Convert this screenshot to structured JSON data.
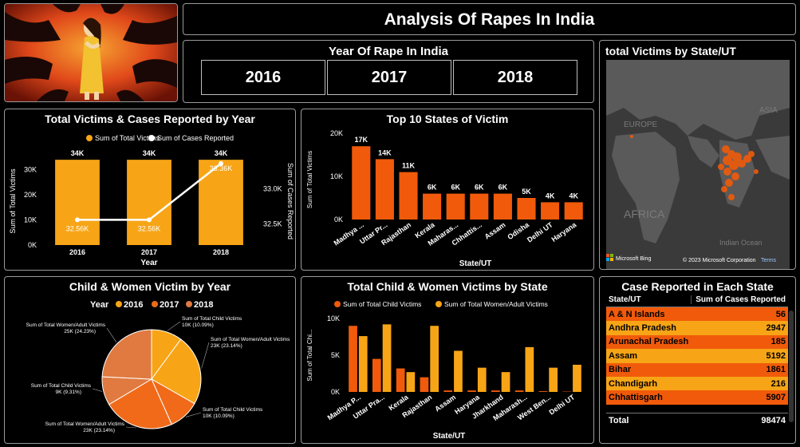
{
  "header": {
    "title": "Analysis Of Rapes In India"
  },
  "year_slicer": {
    "title": "Year Of Rape In India",
    "years": [
      "2016",
      "2017",
      "2018"
    ]
  },
  "map": {
    "title": "total Victims by State/UT",
    "labels": [
      "EUROPE",
      "ASIA",
      "AFRICA",
      "Indian Ocean"
    ],
    "credit_left": "Microsoft Bing",
    "credit_right": "© 2023 Microsoft Corporation",
    "credit_terms": "Terms"
  },
  "table": {
    "title": "Case Reported in Each State",
    "col_state": "State/UT",
    "col_cases": "Sum of Cases Reported",
    "rows": [
      {
        "state": "A & N Islands",
        "cases": "56",
        "color": "#f05a0a"
      },
      {
        "state": "Andhra Pradesh",
        "cases": "2947",
        "color": "#f7a516"
      },
      {
        "state": "Arunachal Pradesh",
        "cases": "185",
        "color": "#f05a0a"
      },
      {
        "state": "Assam",
        "cases": "5192",
        "color": "#f7a516"
      },
      {
        "state": "Bihar",
        "cases": "1861",
        "color": "#f05a0a"
      },
      {
        "state": "Chandigarh",
        "cases": "216",
        "color": "#f7a516"
      },
      {
        "state": "Chhattisgarh",
        "cases": "5907",
        "color": "#f05a0a"
      }
    ],
    "total_label": "Total",
    "total_value": "98474"
  },
  "colors": {
    "orange": "#f7a516",
    "red_orange": "#f05a0a",
    "pie_dark": "#f06a1a",
    "pie_mid": "#e07a40"
  },
  "chart_data": [
    {
      "id": "victims_cases_by_year",
      "type": "bar",
      "title": "Total Victims & Cases Reported by Year",
      "categories": [
        "2016",
        "2017",
        "2018"
      ],
      "xlabel": "Year",
      "ylabel": "Sum of Total Victims",
      "y2label": "Sum of Cases Reported",
      "ylim": [
        0,
        35000
      ],
      "yticks": [
        "0K",
        "10K",
        "20K",
        "30K"
      ],
      "y2ticks": [
        "32.5K",
        "33.0K"
      ],
      "series": [
        {
          "name": "Sum of Total Victims",
          "type": "bar",
          "values": [
            34000,
            34000,
            34000
          ],
          "labels": [
            "34K",
            "34K",
            "34K"
          ]
        },
        {
          "name": "Sum of Cases Reported",
          "type": "line",
          "values": [
            32560,
            32560,
            33360
          ],
          "labels": [
            "32.56K",
            "32.56K",
            "33.36K"
          ]
        }
      ]
    },
    {
      "id": "top10_states",
      "type": "bar",
      "title": "Top 10 States of Victim",
      "categories": [
        "Madhya ...",
        "Uttar Pr...",
        "Rajasthan",
        "Kerala",
        "Maharas...",
        "Chhattis...",
        "Assam",
        "Odisha",
        "Delhi UT",
        "Haryana"
      ],
      "values": [
        17000,
        14000,
        11000,
        6000,
        6000,
        6000,
        6000,
        5000,
        4000,
        4000
      ],
      "labels": [
        "17K",
        "14K",
        "11K",
        "6K",
        "6K",
        "6K",
        "6K",
        "5K",
        "4K",
        "4K"
      ],
      "xlabel": "State/UT",
      "ylabel": "Sum of Total Victims",
      "ylim": [
        0,
        20000
      ],
      "yticks": [
        "0K",
        "10K",
        "20K"
      ]
    },
    {
      "id": "child_women_pie",
      "type": "pie",
      "title": "Child & Women Victim by Year",
      "legend_title": "Year",
      "legend": [
        "2016",
        "2017",
        "2018"
      ],
      "slices": [
        {
          "label": "Sum of Total Child Victims",
          "value_text": "10K (10.09%)",
          "value": 10.09
        },
        {
          "label": "Sum of Total Women/Adult Victims",
          "value_text": "23K (23.14%)",
          "value": 23.14
        },
        {
          "label": "Sum of Total Child Victims",
          "value_text": "10K (10.09%)",
          "value": 10.09
        },
        {
          "label": "Sum of Total Women/Adult Victims",
          "value_text": "23K (23.14%)",
          "value": 23.14
        },
        {
          "label": "Sum of Total Child Victims",
          "value_text": "9K (9.31%)",
          "value": 9.31
        },
        {
          "label": "Sum of Total Women/Adult Victims",
          "value_text": "25K (24.23%)",
          "value": 24.23
        }
      ]
    },
    {
      "id": "child_women_by_state",
      "type": "bar",
      "title": "Total Child & Women Victims by State",
      "categories": [
        "Madhya P...",
        "Uttar Pra...",
        "Kerala",
        "Rajasthan",
        "Assam",
        "Haryana",
        "Jharkhand",
        "Maharash...",
        "West Ben...",
        "Delhi UT"
      ],
      "xlabel": "State/UT",
      "ylabel": "Sum of Total Chi...",
      "ylim": [
        0,
        10000
      ],
      "yticks": [
        "0K",
        "5K",
        "10K"
      ],
      "series": [
        {
          "name": "Sum of Total Child Victims",
          "values": [
            9000,
            4500,
            3200,
            2000,
            200,
            200,
            200,
            200,
            100,
            50
          ]
        },
        {
          "name": "Sum of Total Women/Adult Victims",
          "values": [
            7600,
            9200,
            2700,
            9000,
            5600,
            3300,
            2700,
            6100,
            3300,
            3700
          ]
        }
      ]
    }
  ]
}
